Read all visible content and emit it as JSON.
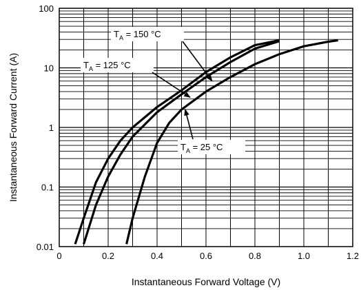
{
  "chart_data": {
    "type": "line",
    "xlabel": "Instantaneous Forward Voltage (V)",
    "ylabel": "Instantaneous Forward Current (A)",
    "xlim": [
      0,
      1.2
    ],
    "ylim": [
      0.01,
      100
    ],
    "yscale": "log",
    "grid": true,
    "x_ticks": [
      "0",
      "0.2",
      "0.4",
      "0.6",
      "0.8",
      "1.0",
      "1.2"
    ],
    "y_ticks": [
      "0.01",
      "0.1",
      "1",
      "10",
      "100"
    ],
    "series": [
      {
        "name": "T_A = 150 °C",
        "label_main": "T",
        "label_sub": "A",
        "label_rest": " = 150 °C",
        "x": [
          0.065,
          0.1,
          0.15,
          0.2,
          0.25,
          0.3,
          0.4,
          0.5,
          0.6,
          0.7,
          0.8,
          0.9
        ],
        "y": [
          0.011,
          0.03,
          0.12,
          0.3,
          0.6,
          1.0,
          2.2,
          4.2,
          8.5,
          15.0,
          24.0,
          29.0
        ]
      },
      {
        "name": "T_A = 125 °C",
        "label_main": "T",
        "label_sub": "A",
        "label_rest": " = 125 °C",
        "x": [
          0.1,
          0.15,
          0.2,
          0.25,
          0.3,
          0.4,
          0.5,
          0.6,
          0.7,
          0.8,
          0.9
        ],
        "y": [
          0.011,
          0.05,
          0.15,
          0.35,
          0.7,
          1.8,
          3.6,
          7.0,
          12.5,
          21.0,
          28.0
        ]
      },
      {
        "name": "T_A = 25 °C",
        "label_main": "T",
        "label_sub": "A",
        "label_rest": " = 25 °C",
        "x": [
          0.275,
          0.3,
          0.35,
          0.4,
          0.45,
          0.5,
          0.6,
          0.7,
          0.8,
          0.9,
          1.0,
          1.1,
          1.14
        ],
        "y": [
          0.011,
          0.03,
          0.15,
          0.55,
          1.2,
          2.0,
          4.0,
          7.0,
          11.5,
          17.0,
          23.0,
          27.5,
          29.0
        ]
      }
    ]
  }
}
